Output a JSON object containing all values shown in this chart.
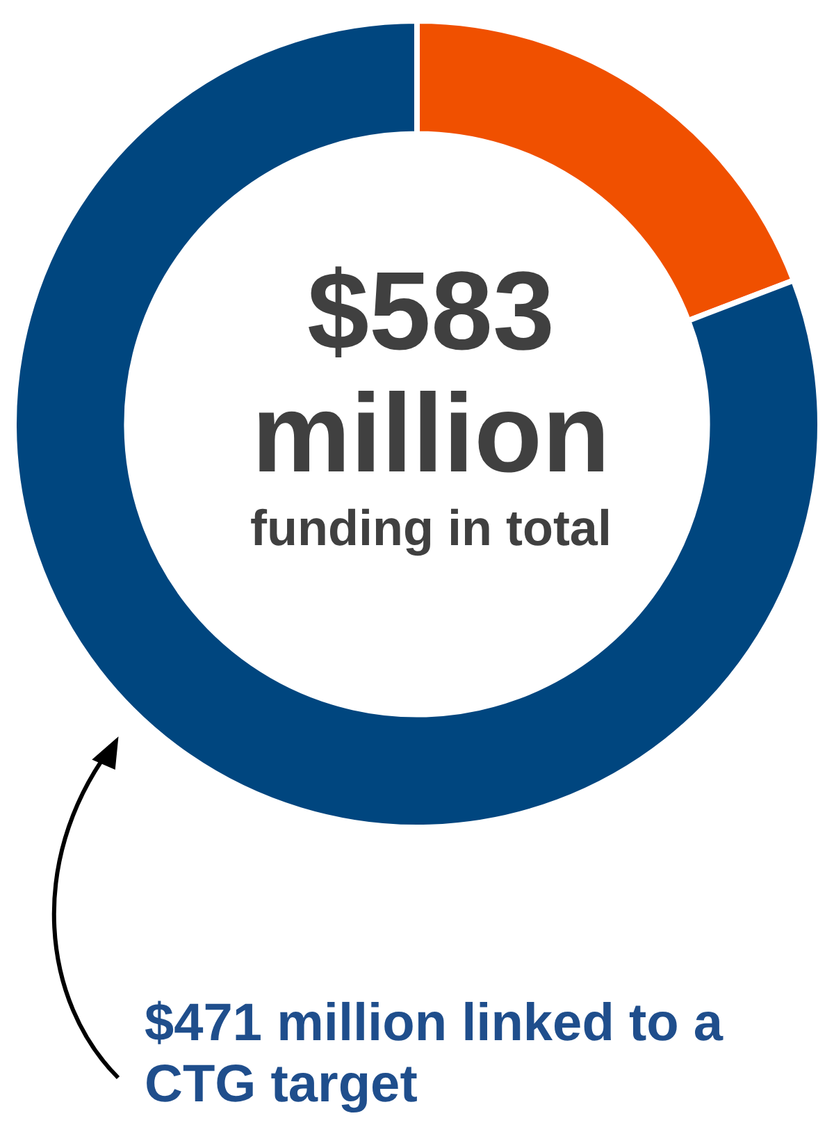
{
  "chart_data": {
    "type": "donut",
    "categories": [
      null,
      null
    ],
    "values": [
      19.2,
      80.8
    ],
    "colors": [
      "#f05000",
      "#00467f"
    ],
    "legend": false,
    "annotations": [
      "$583 million",
      "funding in total",
      "$471 million linked to a CTG target"
    ]
  }
}
